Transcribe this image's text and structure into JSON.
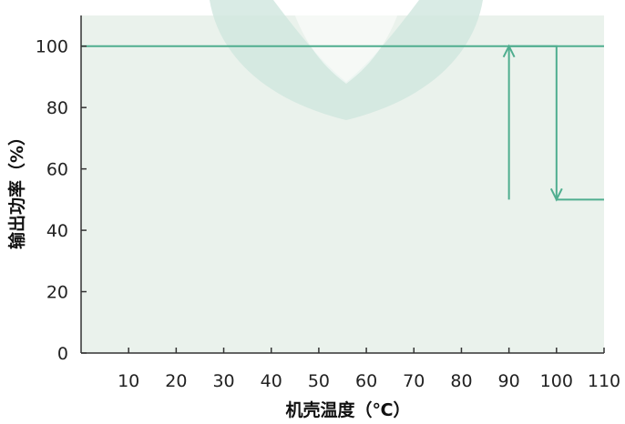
{
  "chart_data": {
    "type": "line",
    "xlabel": "机壳温度（℃）",
    "ylabel": "输出功率（%）",
    "xlim": [
      0,
      110
    ],
    "ylim": [
      0,
      110
    ],
    "x_ticks": [
      10,
      20,
      30,
      40,
      50,
      60,
      70,
      80,
      90,
      100,
      110
    ],
    "y_ticks": [
      0,
      20,
      40,
      60,
      80,
      100
    ],
    "grid": false,
    "series": [
      {
        "x": [
          0,
          100,
          100,
          110
        ],
        "y": [
          100,
          100,
          50,
          50
        ]
      },
      {
        "x": [
          90,
          90,
          110
        ],
        "y": [
          50,
          100,
          100
        ]
      }
    ],
    "arrows": [
      {
        "direction": "down",
        "x": 100,
        "from_y": 100,
        "to_y": 50
      },
      {
        "direction": "up",
        "x": 90,
        "from_y": 50,
        "to_y": 100
      }
    ],
    "colors": {
      "plot_background": "#eaf2ec",
      "line": "#4fae8f",
      "axis": "#333333",
      "watermark": "#cfe6df"
    }
  }
}
